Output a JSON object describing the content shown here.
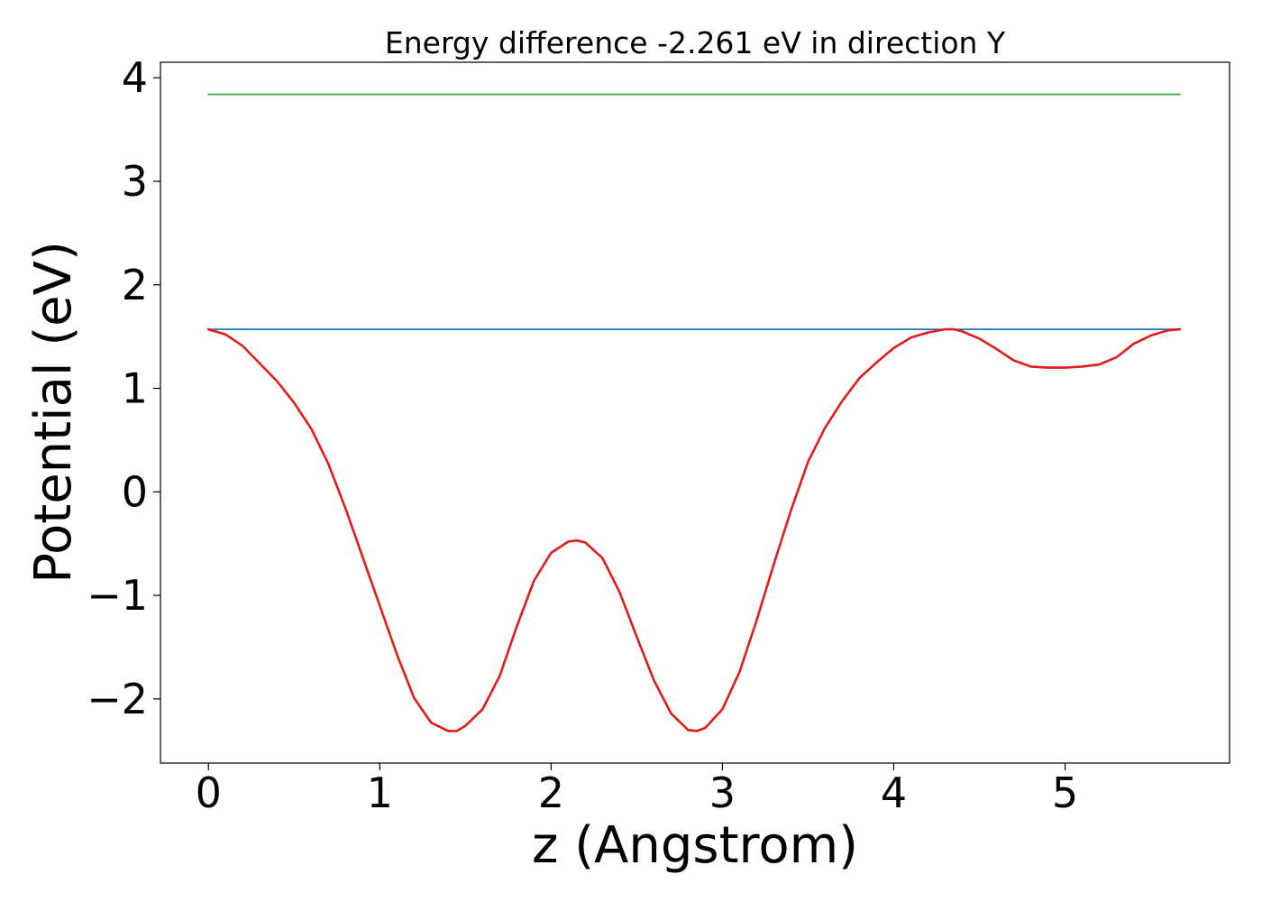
{
  "chart_data": {
    "type": "line",
    "title": "Energy difference -2.261 eV in direction Y",
    "xlabel": "z (Angstrom)",
    "ylabel": "Potential (eV)",
    "xlim": [
      -0.28,
      5.96
    ],
    "ylim": [
      -2.62,
      4.15
    ],
    "xticks": [
      0,
      1,
      2,
      3,
      4,
      5
    ],
    "xtick_labels": [
      "0",
      "1",
      "2",
      "3",
      "4",
      "5"
    ],
    "yticks": [
      -2,
      -1,
      0,
      1,
      2,
      3,
      4
    ],
    "ytick_labels": [
      "−2",
      "−1",
      "0",
      "1",
      "2",
      "3",
      "4"
    ],
    "grid": false,
    "series": [
      {
        "color": "#2ca02c",
        "x": [
          0,
          5.67
        ],
        "y": [
          3.84,
          3.84
        ]
      },
      {
        "color": "#1f77b4",
        "x": [
          0,
          5.67
        ],
        "y": [
          1.57,
          1.57
        ]
      },
      {
        "color": "#e31a1c",
        "x": [
          0,
          0.1,
          0.2,
          0.3,
          0.4,
          0.5,
          0.6,
          0.7,
          0.8,
          0.9,
          1.0,
          1.1,
          1.2,
          1.3,
          1.4,
          1.45,
          1.5,
          1.6,
          1.7,
          1.8,
          1.9,
          2.0,
          2.1,
          2.15,
          2.2,
          2.3,
          2.4,
          2.5,
          2.6,
          2.7,
          2.8,
          2.85,
          2.9,
          3.0,
          3.1,
          3.2,
          3.3,
          3.4,
          3.5,
          3.6,
          3.7,
          3.8,
          3.9,
          4.0,
          4.1,
          4.2,
          4.3,
          4.35,
          4.4,
          4.5,
          4.6,
          4.7,
          4.8,
          4.9,
          5.0,
          5.1,
          5.2,
          5.3,
          5.4,
          5.5,
          5.6,
          5.67
        ],
        "y": [
          1.57,
          1.52,
          1.41,
          1.24,
          1.07,
          0.86,
          0.61,
          0.27,
          -0.16,
          -0.63,
          -1.1,
          -1.57,
          -1.99,
          -2.23,
          -2.31,
          -2.31,
          -2.26,
          -2.1,
          -1.78,
          -1.3,
          -0.86,
          -0.59,
          -0.48,
          -0.47,
          -0.49,
          -0.64,
          -0.97,
          -1.4,
          -1.82,
          -2.14,
          -2.3,
          -2.31,
          -2.28,
          -2.1,
          -1.74,
          -1.24,
          -0.7,
          -0.18,
          0.29,
          0.62,
          0.88,
          1.1,
          1.25,
          1.39,
          1.49,
          1.54,
          1.57,
          1.57,
          1.55,
          1.48,
          1.38,
          1.27,
          1.21,
          1.2,
          1.2,
          1.21,
          1.23,
          1.3,
          1.43,
          1.51,
          1.56,
          1.57
        ]
      }
    ]
  }
}
